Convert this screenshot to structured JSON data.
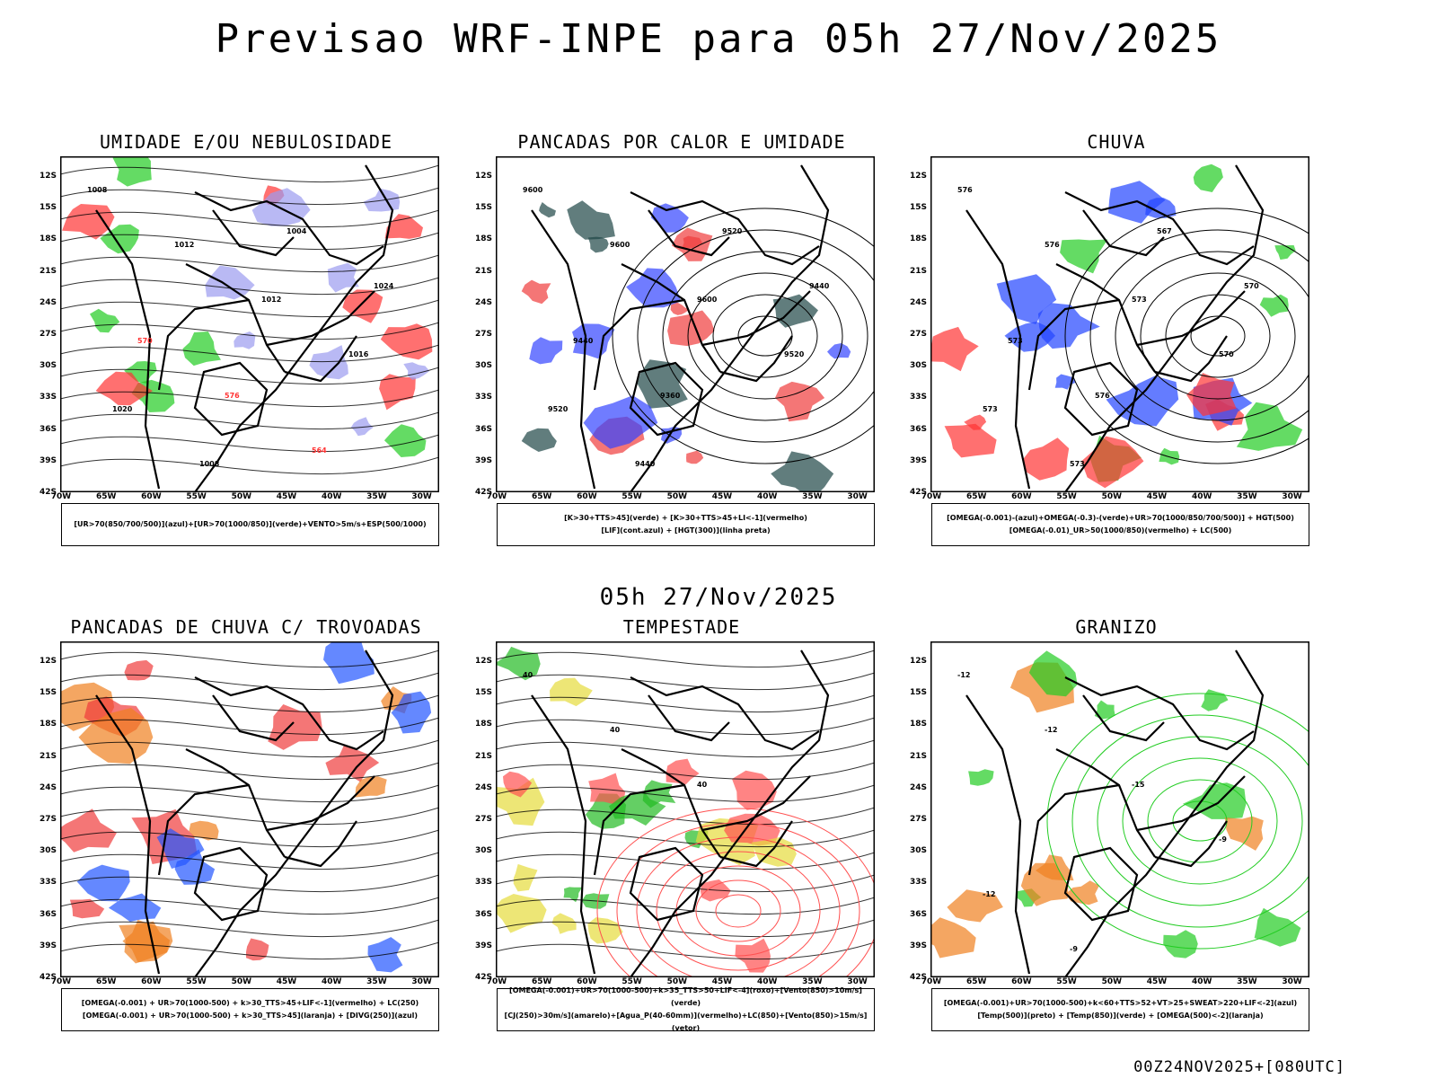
{
  "header": {
    "title": "Previsao WRF-INPE  para 05h 27/Nov/2025"
  },
  "mid_time": "05h 27/Nov/2025",
  "footer": "00Z24NOV2025+[080UTC]",
  "axes": {
    "lat_labels": [
      "12S",
      "15S",
      "18S",
      "21S",
      "24S",
      "27S",
      "30S",
      "33S",
      "36S",
      "39S",
      "42S"
    ],
    "lon_labels": [
      "70W",
      "65W",
      "60W",
      "55W",
      "50W",
      "45W",
      "40W",
      "35W",
      "30W"
    ]
  },
  "panels": [
    {
      "title": "UMIDADE E/OU NEBULOSIDADE",
      "caption": [
        "[UR>70(850/700/500)](azul)+[UR>70(1000/850)](verde)+VENTO>5m/s+ESP(500/1000)"
      ],
      "contour_labels": [
        "1008",
        "1012",
        "1012",
        "1016",
        "1020",
        "1008",
        "1004",
        "1024",
        "570",
        "576",
        "564"
      ],
      "colors": [
        "#9b9bf0",
        "#22cc22",
        "#ff3333"
      ]
    },
    {
      "title": "PANCADAS POR CALOR E UMIDADE",
      "caption": [
        "[K>30+TTS>45](verde) + [K>30+TTS>45+LI<-1](vermelho)",
        "[LIF](cont.azul) + [HGT(300)](linha preta)"
      ],
      "contour_labels": [
        "9600",
        "9600",
        "9600",
        "9520",
        "9520",
        "9440",
        "9520",
        "9440",
        "9440",
        "9360"
      ],
      "colors": [
        "#f03c3c",
        "#1e4646",
        "#3344ff"
      ]
    },
    {
      "title": "CHUVA",
      "caption": [
        "[OMEGA(-0.001)-(azul)+OMEGA(-0.3)-(verde)+UR>70(1000/850/700/500)] + HGT(500)",
        "[OMEGA(-0.01)_UR>50(1000/850)(vermelho) + LC(500)"
      ],
      "contour_labels": [
        "576",
        "576",
        "573",
        "570",
        "573",
        "573",
        "567",
        "570",
        "573",
        "576"
      ],
      "colors": [
        "#2244ff",
        "#22cc22",
        "#ff3333"
      ]
    },
    {
      "title": "PANCADAS DE CHUVA C/ TROVOADAS",
      "caption": [
        "[OMEGA(-0.001) + UR>70(1000-500) + k>30_TTS>45+LIF<-1](vermelho) + LC(250)",
        "[OMEGA(-0.001) + UR>70(1000-500) + k>30_TTS>45](laranja) + [DIVG(250)](azul)"
      ],
      "contour_labels": [],
      "colors": [
        "#f03c3c",
        "#f08020",
        "#2255ff"
      ]
    },
    {
      "title": "TEMPESTADE",
      "caption": [
        "[OMEGA(-0.001)+UR>70(1000-500)+k>35_TTS>50+LIF<-4](roxo)+[Vento(850)>10m/s](verde)",
        "[CJ(250)>30m/s](amarelo)+[Agua_P(40-60mm)](vermelho)+LC(850)+[Vento(850)>15m/s](vetor)"
      ],
      "contour_labels": [
        "40",
        "40",
        "40"
      ],
      "colors": [
        "#e6dc3c",
        "#22bb22",
        "#ff5050"
      ]
    },
    {
      "title": "GRANIZO",
      "caption": [
        "[OMEGA(-0.001)+UR>70(1000-500)+k<60+TTS>52+VT>25+SWEAT>220+LIF<-2](azul)",
        "[Temp(500)](preto) + [Temp(850)](verde) + [OMEGA(500)<-2](laranja)"
      ],
      "contour_labels": [
        "-12",
        "-12",
        "-15",
        "-9",
        "-12",
        "-9"
      ],
      "colors": [
        "#22cc22",
        "#f08020",
        "#000000"
      ]
    }
  ]
}
